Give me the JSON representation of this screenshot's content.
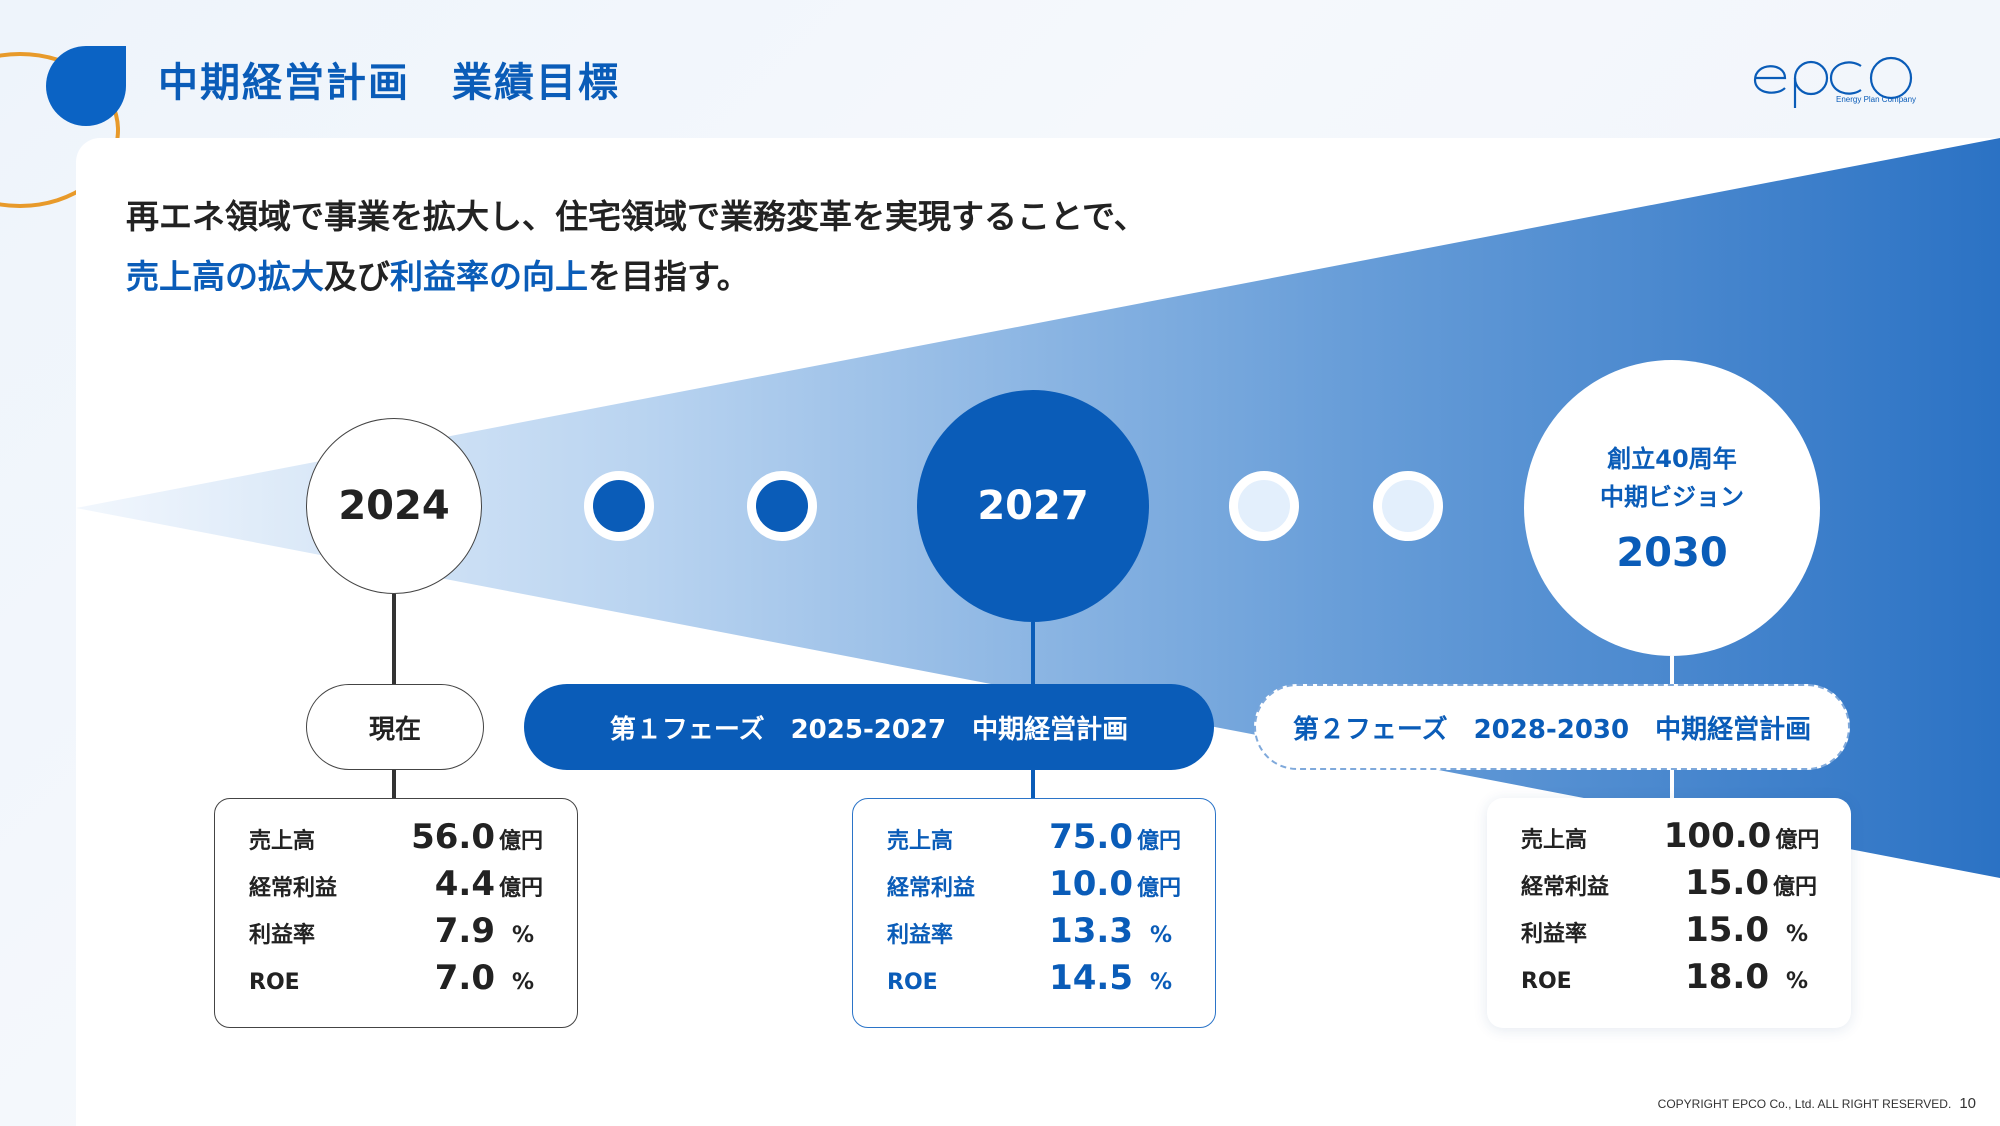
{
  "header": {
    "title": "中期経営計画　業績目標",
    "logo_text": "epco",
    "logo_tagline": "Energy Plan Company"
  },
  "lead": {
    "line1": "再エネ領域で事業を拡大し、住宅領域で業務変革を実現することで、",
    "line2_parts": [
      "売上高の拡大",
      "及び",
      "利益率の向上",
      "を目指す。"
    ]
  },
  "colors": {
    "primary": "#0a5cb8",
    "accent_orange": "#e89a2a",
    "pale_blue": "#e3effc"
  },
  "timeline": {
    "milestones": [
      {
        "year": "2024",
        "label": "現在"
      },
      {
        "year": "2027",
        "label": "第１フェーズ　2025-2027　中期経営計画"
      },
      {
        "year": "2030",
        "sub1": "創立40周年",
        "sub2": "中期ビジョン",
        "label": "第２フェーズ　2028-2030　中期経営計画"
      }
    ]
  },
  "targets": [
    {
      "rows": [
        {
          "label": "売上高",
          "value": "56.0",
          "unit": "億円"
        },
        {
          "label": "経常利益",
          "value": "4.4",
          "unit": "億円"
        },
        {
          "label": "利益率",
          "value": "7.9",
          "unit": "%"
        },
        {
          "label": "ROE",
          "value": "7.0",
          "unit": "%"
        }
      ]
    },
    {
      "rows": [
        {
          "label": "売上高",
          "value": "75.0",
          "unit": "億円"
        },
        {
          "label": "経常利益",
          "value": "10.0",
          "unit": "億円"
        },
        {
          "label": "利益率",
          "value": "13.3",
          "unit": "%"
        },
        {
          "label": "ROE",
          "value": "14.5",
          "unit": "%"
        }
      ]
    },
    {
      "rows": [
        {
          "label": "売上高",
          "value": "100.0",
          "unit": "億円"
        },
        {
          "label": "経常利益",
          "value": "15.0",
          "unit": "億円"
        },
        {
          "label": "利益率",
          "value": "15.0",
          "unit": "%"
        },
        {
          "label": "ROE",
          "value": "18.0",
          "unit": "%"
        }
      ]
    }
  ],
  "footer": {
    "copyright": "COPYRIGHT EPCO Co., Ltd. ALL RIGHT RESERVED.",
    "page": "10"
  }
}
